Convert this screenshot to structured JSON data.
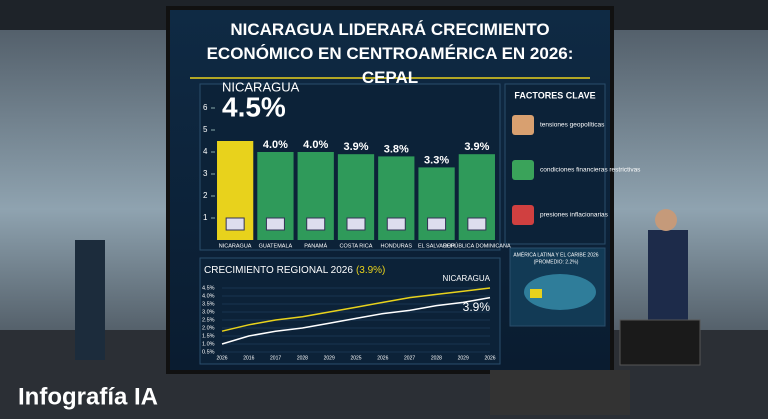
{
  "chart_data": [
    {
      "type": "bar",
      "title": "NICARAGUA LIDERARÁ CRECIMIENTO ECONÓMICO EN CENTROAMÉRICA EN 2026: CEPAL",
      "highlight_label": "NICARAGUA",
      "categories": [
        "NICARAGUA",
        "GUATEMALA",
        "PANAMÁ",
        "COSTA RICA",
        "HONDURAS",
        "EL SALVADOR",
        "REPÚBLICA DOMINICANA"
      ],
      "values": [
        4.5,
        4.0,
        4.0,
        3.9,
        3.8,
        3.3,
        3.9
      ],
      "value_labels": [
        "4.5%",
        "4.0%",
        "4.0%",
        "3.9%",
        "3.8%",
        "3.3%",
        "3.9%"
      ],
      "colors": [
        "#e8d21c",
        "#2f9a5a",
        "#2f9a5a",
        "#2f9a5a",
        "#2f9a5a",
        "#2f9a5a",
        "#2f9a5a"
      ],
      "ylim": [
        0,
        6
      ],
      "yticks": [
        1,
        2,
        3,
        4,
        5,
        6
      ]
    },
    {
      "type": "line",
      "title": "CRECIMIENTO REGIONAL 2026",
      "title_note": "(3.9%)",
      "categories": [
        "2026",
        "2016",
        "2017",
        "2028",
        "2029",
        "2025",
        "2026",
        "2027",
        "2028",
        "2029",
        "2026"
      ],
      "series": [
        {
          "name": "NICARAGUA",
          "color": "#e8d21c",
          "values": [
            1.8,
            2.2,
            2.5,
            2.7,
            3.0,
            3.3,
            3.6,
            3.9,
            4.1,
            4.3,
            4.5
          ]
        },
        {
          "color": "#ffffff",
          "values": [
            1.0,
            1.5,
            1.8,
            2.0,
            2.3,
            2.6,
            2.9,
            3.1,
            3.4,
            3.6,
            3.9
          ],
          "end_label": "3.9%"
        }
      ],
      "ylim": [
        0.5,
        4.5
      ],
      "yticks": [
        {
          "value": 0.5,
          "label": "0.5%"
        },
        {
          "value": 1.0,
          "label": "1.0%"
        },
        {
          "value": 1.5,
          "label": "1.5%"
        },
        {
          "value": 2.0,
          "label": "2.0%"
        },
        {
          "value": 2.5,
          "label": "2.5%"
        },
        {
          "value": 3.0,
          "label": "3.0%"
        },
        {
          "value": 3.5,
          "label": "3.5%"
        },
        {
          "value": 4.0,
          "label": "4.0%"
        },
        {
          "value": 4.5,
          "label": "4.5%"
        }
      ]
    }
  ],
  "factors": {
    "title": "FACTORES CLAVE",
    "items": [
      "tensiones geopolíticas",
      "condiciones financieras restrictivas",
      "presiones inflacionarias"
    ]
  },
  "map": {
    "title": "AMÉRICA LATINA Y EL CARIBE 2026",
    "note": "(PROMEDIO: 2.2%)"
  },
  "footer": "Infografía IA"
}
